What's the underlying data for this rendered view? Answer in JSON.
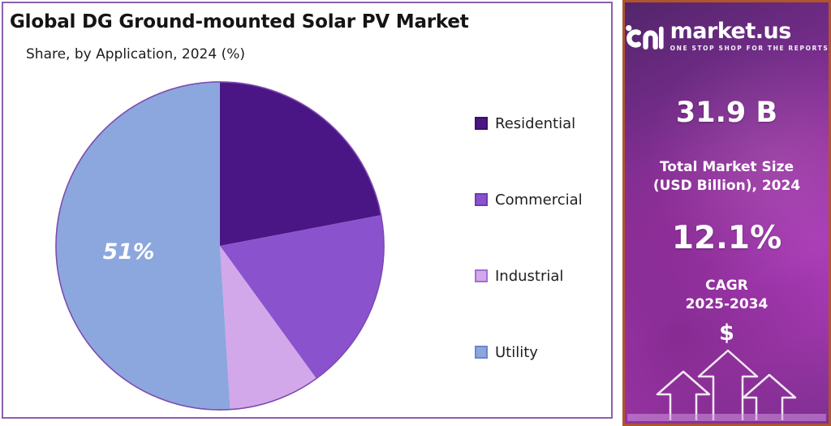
{
  "chart_data": {
    "type": "pie",
    "title": "Global DG Ground-mounted Solar PV Market",
    "subtitle": "Share, by Application, 2024 (%)",
    "categories": [
      "Residential",
      "Commercial",
      "Industrial",
      "Utility"
    ],
    "values": [
      22,
      18,
      9,
      51
    ],
    "unit": "%",
    "colors": [
      "#4a1685",
      "#8b52ce",
      "#d2a8ea",
      "#8ca7dd"
    ],
    "swatch_border_colors": [
      "#38106b",
      "#6f3cb2",
      "#a46fd2",
      "#6d87c8"
    ],
    "pie_outline_color": "#7d4bb0",
    "data_label": {
      "category": "Utility",
      "label": "51%"
    },
    "legend_position": "right",
    "start_angle_deg": 0,
    "direction": "clockwise",
    "note": "Only the Utility slice (51%) carries an on-chart label; other values estimated from slice angles."
  },
  "panel": {
    "border_color": "#8e5fae"
  },
  "sidebar": {
    "brand": {
      "name": "market.us",
      "tagline": "ONE STOP SHOP FOR THE REPORTS"
    },
    "market_size_value": "31.9 B",
    "market_size_label_line1": "Total Market Size",
    "market_size_label_line2": "(USD Billion), 2024",
    "cagr_value": "12.1%",
    "cagr_label_line1": "CAGR",
    "cagr_label_line2": "2025-2034",
    "dollar_symbol": "$",
    "colors": {
      "border": "#b0542e",
      "background_top": "#53256b",
      "background_mid": "#a93ab6",
      "background_bottom": "#7e2f91",
      "text": "#ffffff"
    }
  }
}
